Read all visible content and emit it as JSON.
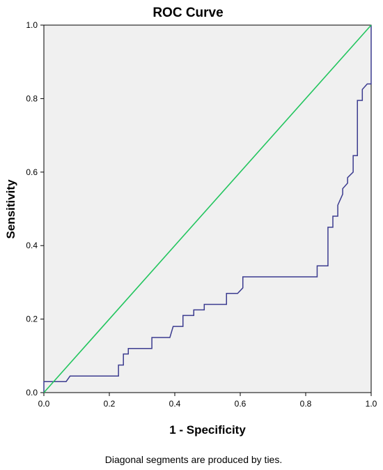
{
  "chart_data": {
    "type": "line",
    "title": "ROC Curve",
    "xlabel": "1 - Specificity",
    "ylabel": "Sensitivity",
    "xlim": [
      0,
      1
    ],
    "ylim": [
      0,
      1
    ],
    "xticks": [
      "0.0",
      "0.2",
      "0.4",
      "0.6",
      "0.8",
      "1.0"
    ],
    "yticks": [
      "0.0",
      "0.2",
      "0.4",
      "0.6",
      "0.8",
      "1.0"
    ],
    "grid": false,
    "footnote": "Diagonal segments are produced by ties.",
    "colors": {
      "background": "#f0f0f0",
      "roc": "#3b3b8f",
      "reference": "#22c55e"
    },
    "series": [
      {
        "id": "roc",
        "points": [
          [
            0.0,
            0.0
          ],
          [
            0.0,
            0.03
          ],
          [
            0.068,
            0.03
          ],
          [
            0.08,
            0.045
          ],
          [
            0.228,
            0.045
          ],
          [
            0.228,
            0.075
          ],
          [
            0.243,
            0.075
          ],
          [
            0.243,
            0.105
          ],
          [
            0.258,
            0.105
          ],
          [
            0.258,
            0.12
          ],
          [
            0.33,
            0.12
          ],
          [
            0.33,
            0.15
          ],
          [
            0.385,
            0.15
          ],
          [
            0.395,
            0.18
          ],
          [
            0.425,
            0.18
          ],
          [
            0.425,
            0.21
          ],
          [
            0.458,
            0.21
          ],
          [
            0.458,
            0.225
          ],
          [
            0.49,
            0.225
          ],
          [
            0.49,
            0.24
          ],
          [
            0.558,
            0.24
          ],
          [
            0.558,
            0.27
          ],
          [
            0.592,
            0.27
          ],
          [
            0.608,
            0.285
          ],
          [
            0.608,
            0.315
          ],
          [
            0.835,
            0.315
          ],
          [
            0.835,
            0.345
          ],
          [
            0.868,
            0.345
          ],
          [
            0.868,
            0.45
          ],
          [
            0.883,
            0.45
          ],
          [
            0.883,
            0.48
          ],
          [
            0.898,
            0.48
          ],
          [
            0.898,
            0.51
          ],
          [
            0.913,
            0.54
          ],
          [
            0.913,
            0.555
          ],
          [
            0.928,
            0.57
          ],
          [
            0.928,
            0.585
          ],
          [
            0.945,
            0.6
          ],
          [
            0.945,
            0.645
          ],
          [
            0.958,
            0.645
          ],
          [
            0.958,
            0.795
          ],
          [
            0.973,
            0.795
          ],
          [
            0.973,
            0.825
          ],
          [
            0.988,
            0.84
          ],
          [
            1.0,
            0.84
          ],
          [
            1.0,
            1.0
          ]
        ]
      },
      {
        "id": "reference",
        "points": [
          [
            0,
            0
          ],
          [
            1,
            1
          ]
        ]
      }
    ]
  }
}
